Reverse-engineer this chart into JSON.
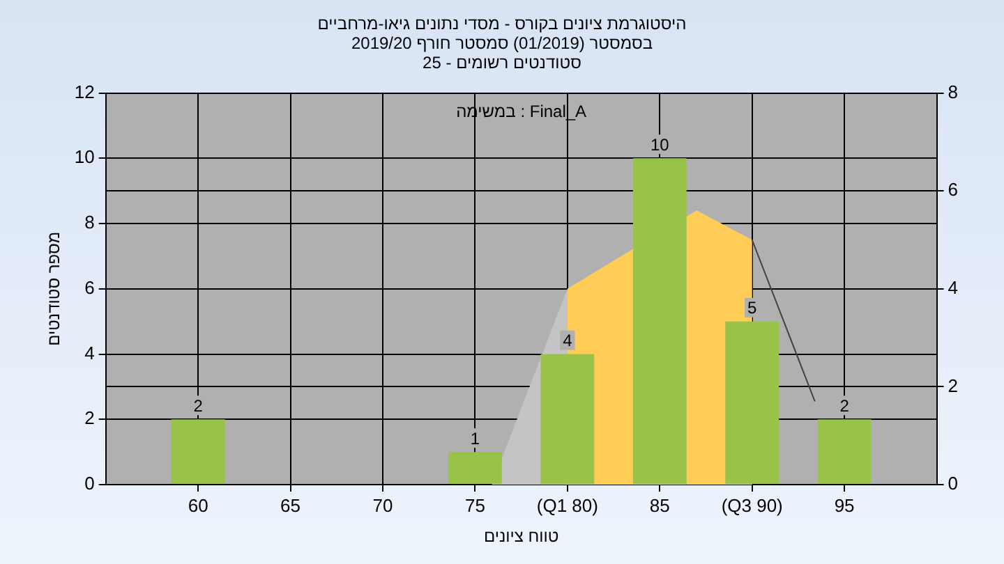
{
  "chart_data": {
    "type": "bar",
    "title": "היסטוגרמת ציונים בקורס - מסדי נתונים גיאו-מרחביים",
    "subtitle": "בסמסטר (01/2019) סמסטר חורף 2019/20\nסטודנטים רשומים - 25",
    "xlabel": "טווח ציונים",
    "ylabel": "מספר סטודנטים",
    "annotations": [
      "במשימה : Final_A"
    ],
    "x": [
      60,
      65,
      70,
      75,
      80,
      85,
      90,
      95
    ],
    "series": [
      {
        "color": "#99c24a",
        "values": [
          2,
          0,
          0,
          1,
          4,
          10,
          5,
          2
        ],
        "value_labels": [
          "2",
          null,
          null,
          "1",
          "4",
          "10",
          "5",
          "2"
        ]
      },
      {
        "type": "area",
        "axis": "y2",
        "color": "#c4c4c4",
        "x": [
          75.9,
          80,
          87,
          90
        ],
        "values": [
          0,
          4,
          5.6,
          5
        ]
      },
      {
        "type": "area",
        "axis": "y2",
        "color": "#ffcc55",
        "x": [
          80,
          87,
          90
        ],
        "values": [
          4,
          5.6,
          5
        ]
      },
      {
        "type": "line",
        "axis": "y2",
        "color": "#404040",
        "x": [
          90,
          93.4
        ],
        "values": [
          5,
          1.7
        ]
      }
    ],
    "xlim": [
      55,
      100
    ],
    "xticks": [
      60,
      65,
      70,
      75,
      {
        "value": 80,
        "label": "(Q1 80)"
      },
      85,
      {
        "value": 90,
        "label": "(Q3 90)"
      },
      95
    ],
    "ylim": [
      0,
      12
    ],
    "yticks": [
      0,
      2,
      4,
      6,
      8,
      10,
      12
    ],
    "y2lim": [
      0,
      8
    ],
    "y2ticks": [
      0,
      2,
      4,
      6,
      8
    ],
    "grid": true,
    "legend": false
  }
}
